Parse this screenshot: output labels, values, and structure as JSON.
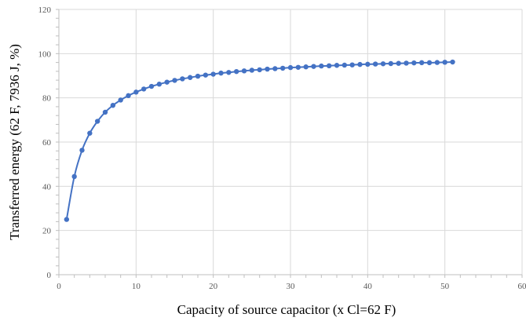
{
  "chart_data": {
    "type": "line",
    "title": "",
    "xlabel": "Capacity of source capacitor (x Cl=62 F)",
    "ylabel": "Transferred energy (62 F, 7936 J, %)",
    "xlim": [
      0,
      60
    ],
    "ylim": [
      0,
      120
    ],
    "x_ticks": [
      0,
      10,
      20,
      30,
      40,
      50,
      60
    ],
    "y_ticks": [
      0,
      20,
      40,
      60,
      80,
      100,
      120
    ],
    "x_tick_labels": [
      "0",
      "10",
      "20",
      "30",
      "40",
      "50",
      "60"
    ],
    "y_tick_labels": [
      "0",
      "20",
      "40",
      "60",
      "80",
      "100",
      "120"
    ],
    "grid": true,
    "legend": "none",
    "series": [
      {
        "color": "#4472c4",
        "x": [
          1,
          2,
          3,
          4,
          5,
          6,
          7,
          8,
          9,
          10,
          11,
          12,
          13,
          14,
          15,
          16,
          17,
          18,
          19,
          20,
          21,
          22,
          23,
          24,
          25,
          26,
          27,
          28,
          29,
          30,
          31,
          32,
          33,
          34,
          35,
          36,
          37,
          38,
          39,
          40,
          41,
          42,
          43,
          44,
          45,
          46,
          47,
          48,
          49,
          50,
          51
        ],
        "y": [
          25.0,
          44.4,
          56.3,
          64.0,
          69.4,
          73.5,
          76.6,
          79.0,
          81.0,
          82.6,
          84.0,
          85.2,
          86.2,
          87.1,
          87.9,
          88.6,
          89.2,
          89.8,
          90.3,
          90.7,
          91.2,
          91.5,
          91.9,
          92.2,
          92.5,
          92.7,
          93.0,
          93.2,
          93.4,
          93.7,
          93.8,
          94.0,
          94.2,
          94.4,
          94.5,
          94.7,
          94.8,
          94.9,
          95.1,
          95.2,
          95.3,
          95.4,
          95.5,
          95.6,
          95.7,
          95.8,
          95.9,
          95.9,
          96.0,
          96.1,
          96.2
        ]
      }
    ]
  }
}
